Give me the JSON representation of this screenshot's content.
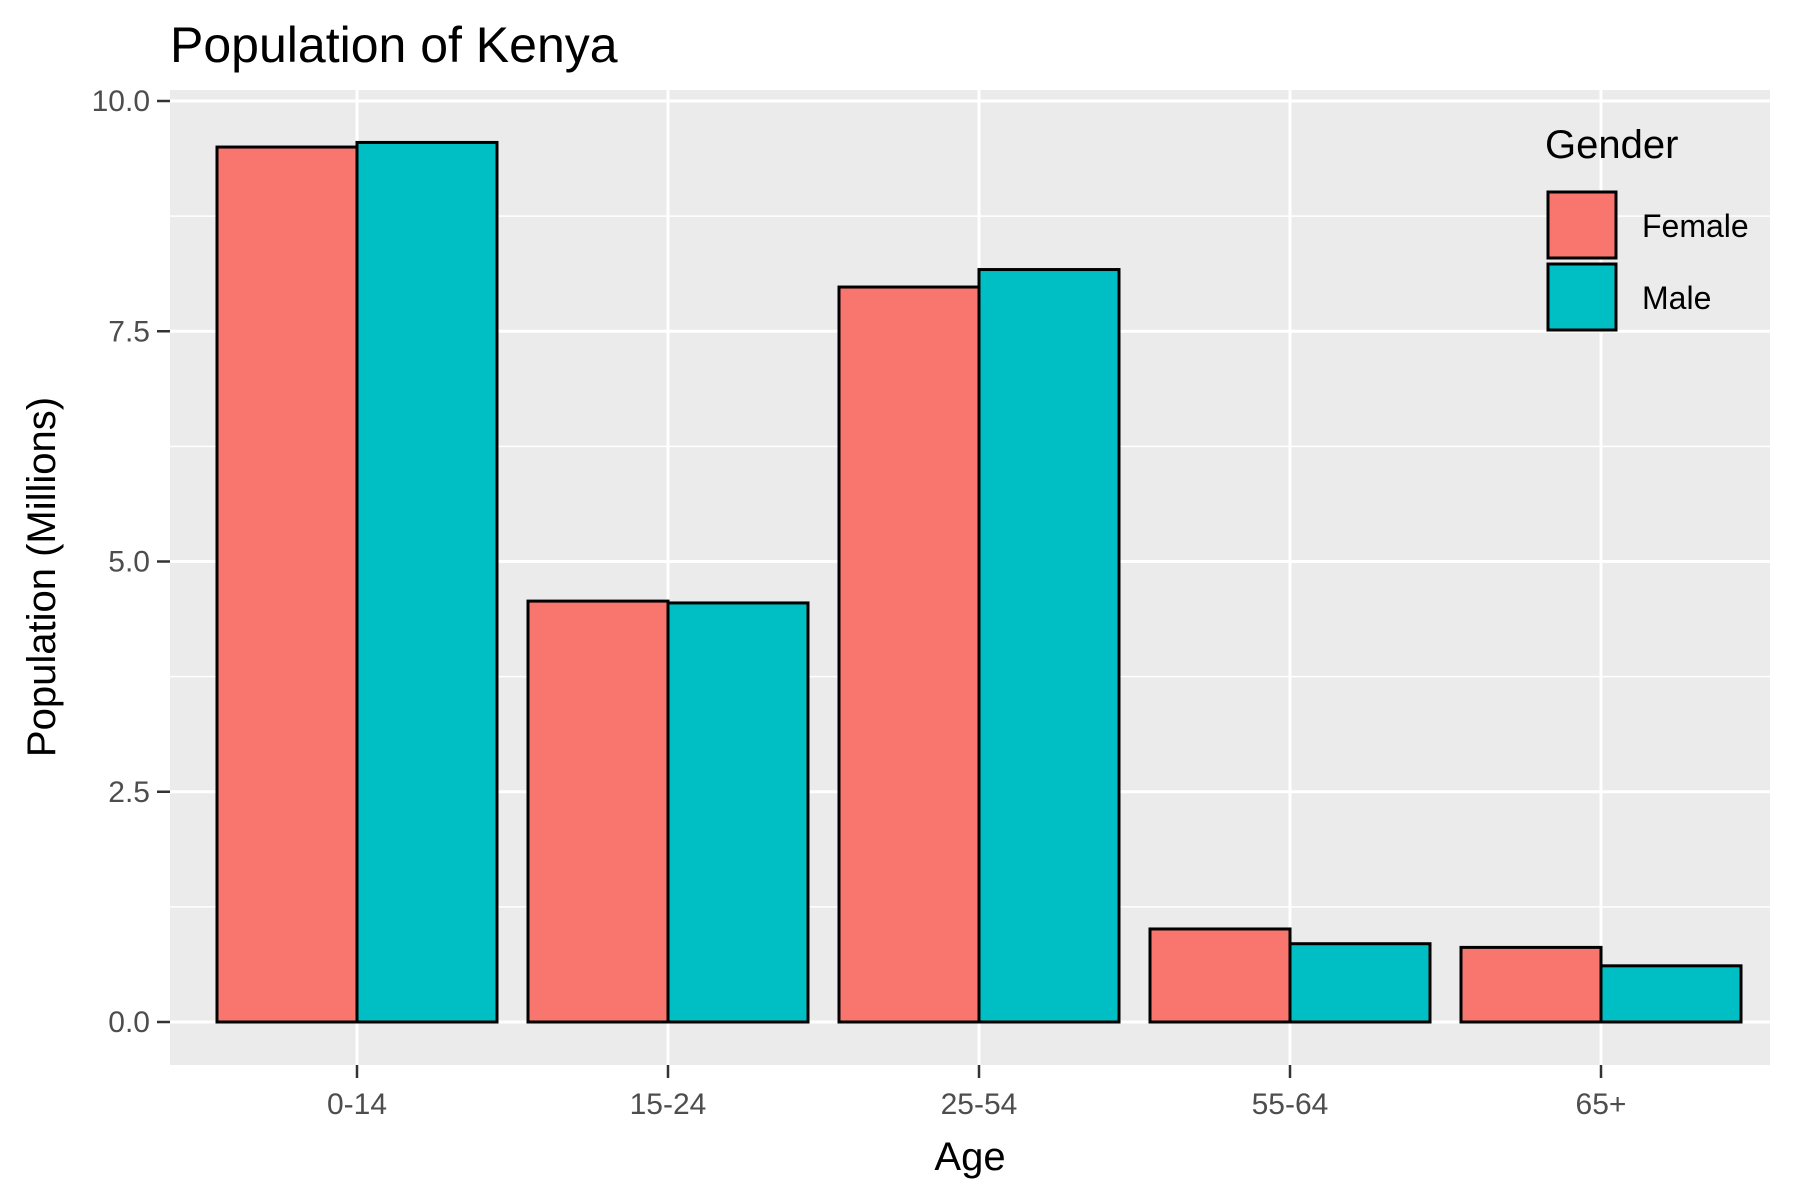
{
  "chart_data": {
    "type": "bar",
    "title": "Population of Kenya",
    "xlabel": "Age",
    "ylabel": "Population (Millions)",
    "categories": [
      "0-14",
      "15-24",
      "25-54",
      "55-64",
      "65+"
    ],
    "series": [
      {
        "name": "Female",
        "color": "#F8766D",
        "values": [
          9.5,
          4.57,
          7.98,
          1.01,
          0.81
        ]
      },
      {
        "name": "Male",
        "color": "#00BFC4",
        "values": [
          9.55,
          4.55,
          8.17,
          0.85,
          0.61
        ]
      }
    ],
    "ylim": [
      0,
      10
    ],
    "yticks": [
      "0.0",
      "2.5",
      "5.0",
      "7.5",
      "10.0"
    ],
    "grid": true,
    "legend": {
      "title": "Gender",
      "position": "top-right"
    }
  }
}
